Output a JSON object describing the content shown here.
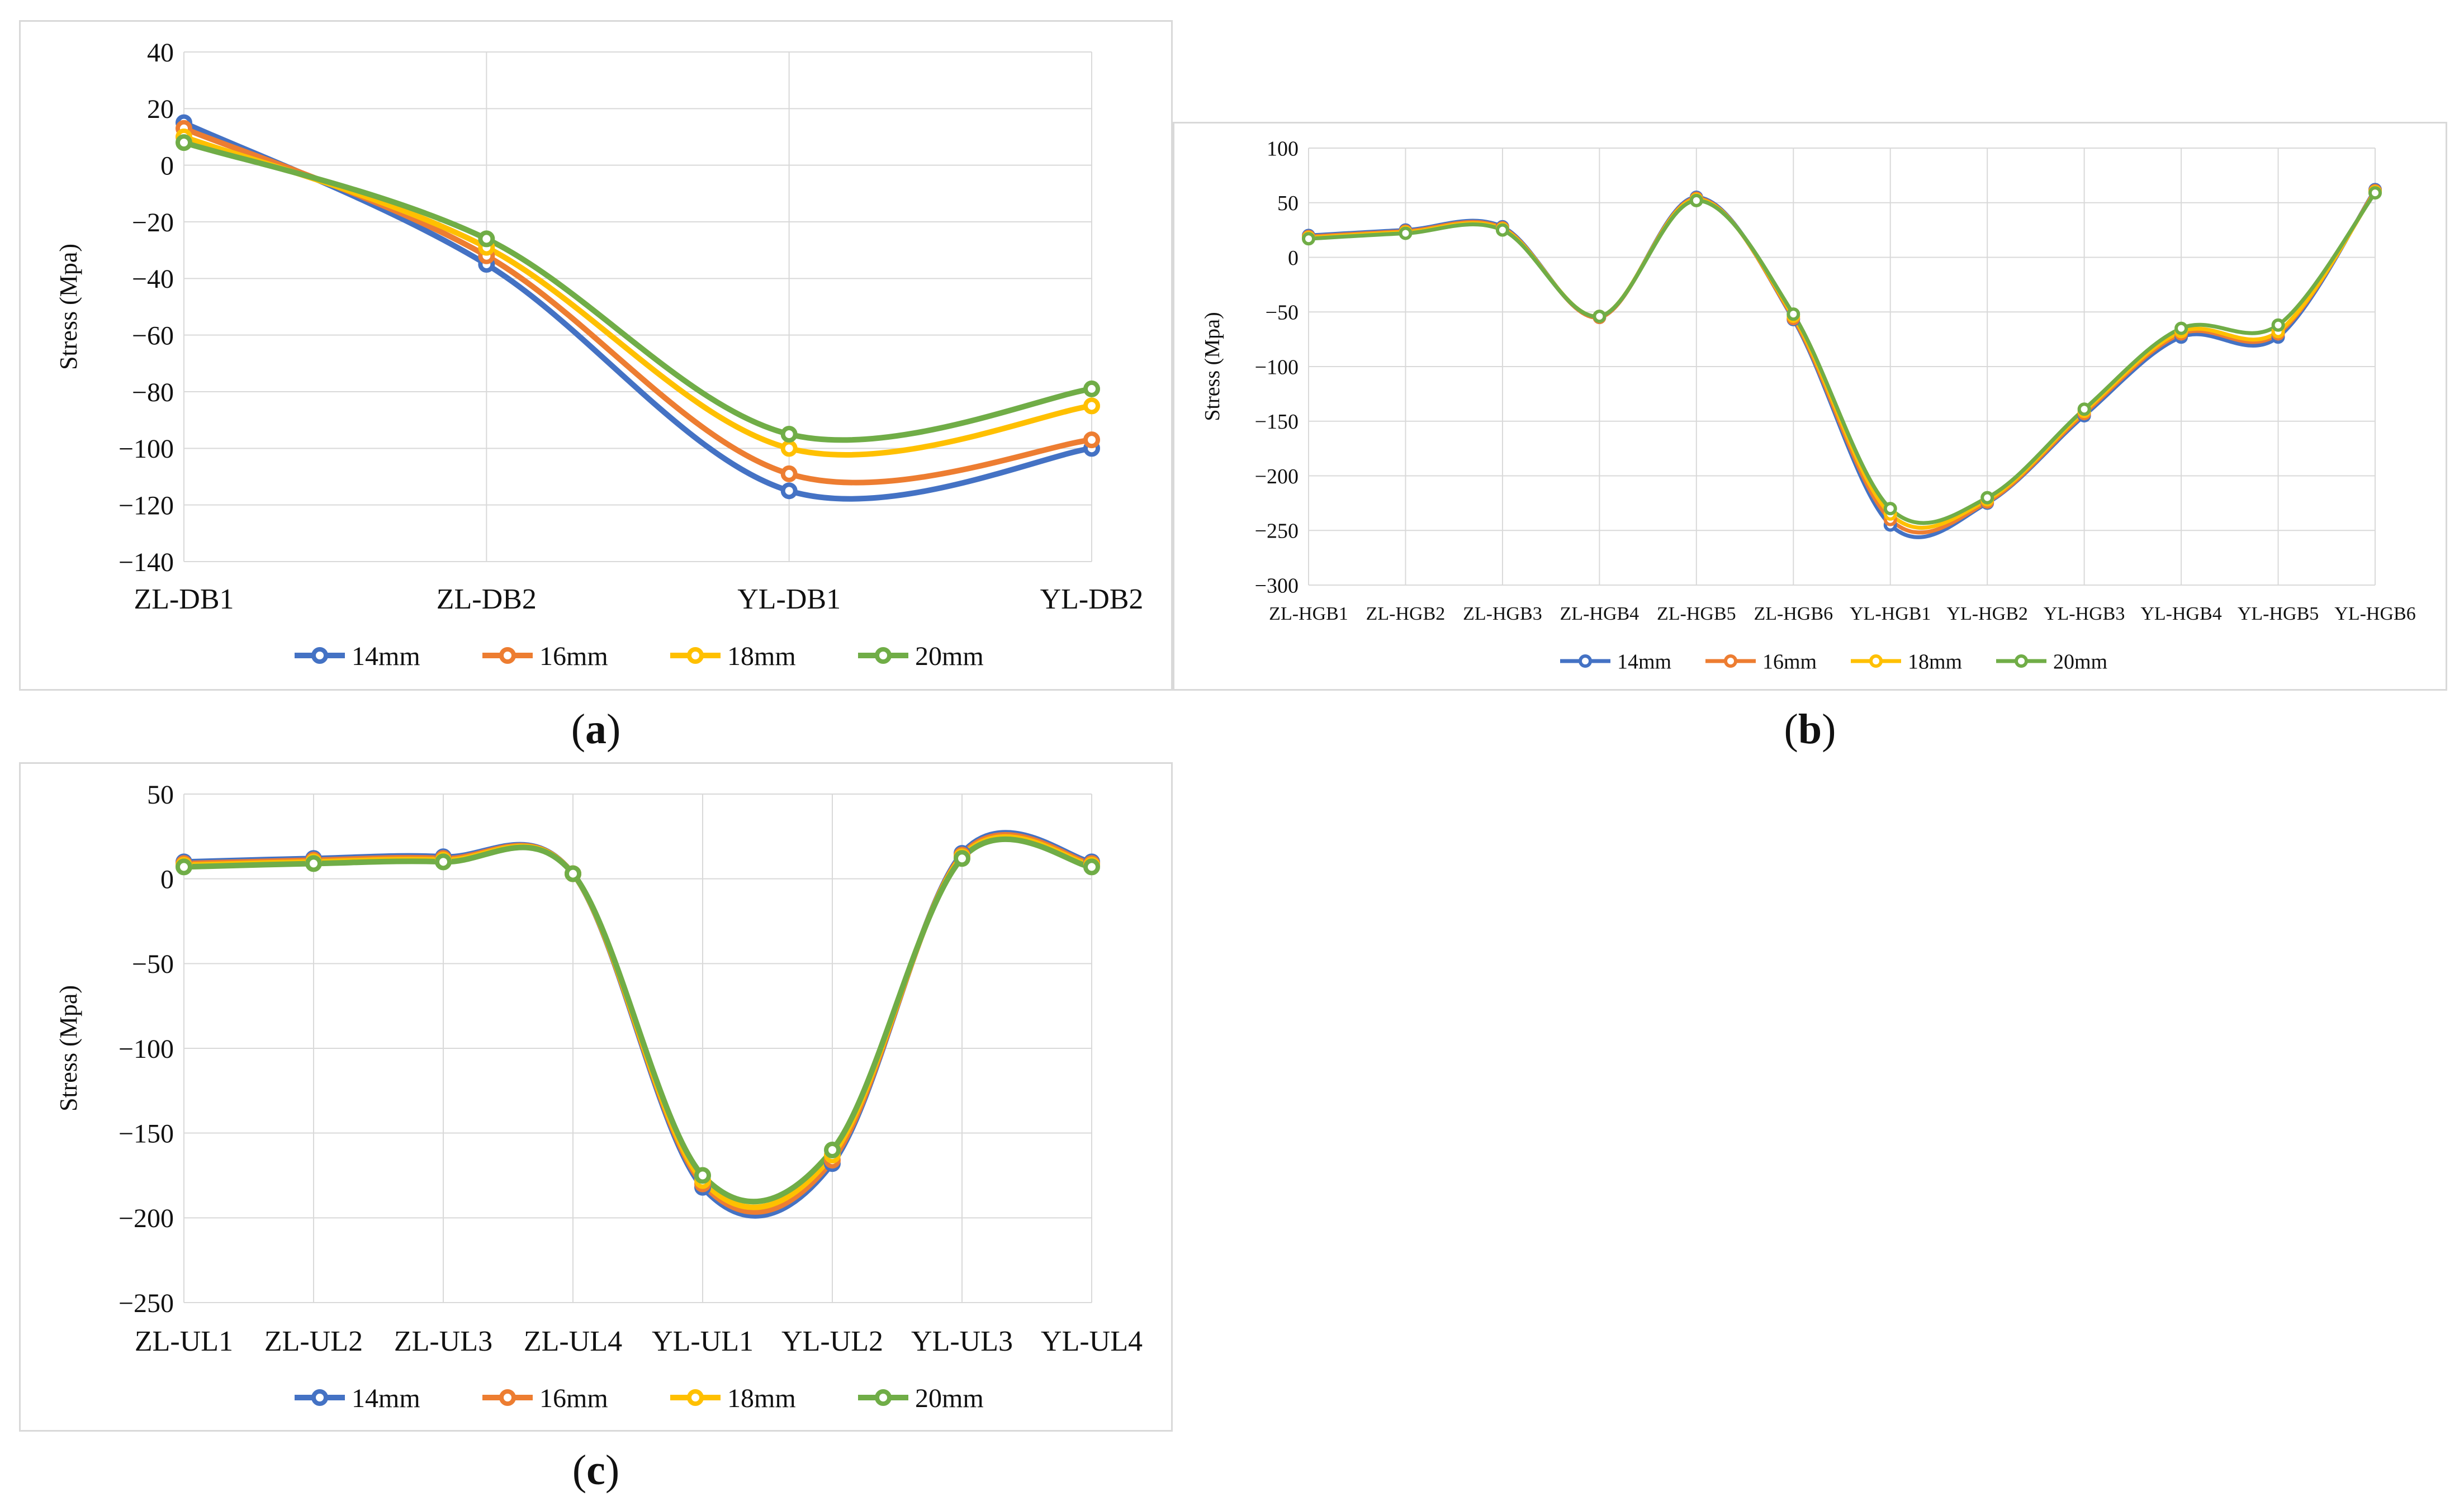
{
  "figure": {
    "captions": [
      "a",
      "b",
      "c"
    ]
  },
  "chart_data": [
    {
      "type": "line",
      "panel": "a",
      "title": "",
      "xlabel": "",
      "ylabel": "Stress (Mpa)",
      "categories": [
        "ZL-DB1",
        "ZL-DB2",
        "YL-DB1",
        "YL-DB2"
      ],
      "ylim": [
        -140,
        40
      ],
      "yticks": [
        40,
        20,
        0,
        -20,
        -40,
        -60,
        -80,
        -100,
        -120,
        -140
      ],
      "grid": true,
      "legend": "bottom",
      "series": [
        {
          "name": "14mm",
          "color": "#4472c4",
          "values": [
            15,
            -35,
            -115,
            -100
          ]
        },
        {
          "name": "16mm",
          "color": "#ed7d31",
          "values": [
            13,
            -32,
            -109,
            -97
          ]
        },
        {
          "name": "18mm",
          "color": "#ffc000",
          "values": [
            10,
            -29,
            -100,
            -85
          ]
        },
        {
          "name": "20mm",
          "color": "#70ad47",
          "values": [
            8,
            -26,
            -95,
            -79
          ]
        }
      ]
    },
    {
      "type": "line",
      "panel": "b",
      "title": "",
      "xlabel": "",
      "ylabel": "Stress (Mpa)",
      "categories": [
        "ZL-HGB1",
        "ZL-HGB2",
        "ZL-HGB3",
        "ZL-HGB4",
        "ZL-HGB5",
        "ZL-HGB6",
        "YL-HGB1",
        "YL-HGB2",
        "YL-HGB3",
        "YL-HGB4",
        "YL-HGB5",
        "YL-HGB6"
      ],
      "ylim": [
        -300,
        100
      ],
      "yticks": [
        100,
        50,
        0,
        -50,
        -100,
        -150,
        -200,
        -250,
        -300
      ],
      "grid": true,
      "legend": "bottom",
      "series": [
        {
          "name": "14mm",
          "color": "#4472c4",
          "values": [
            20,
            25,
            28,
            -55,
            55,
            -57,
            -245,
            -225,
            -145,
            -73,
            -73,
            62
          ]
        },
        {
          "name": "16mm",
          "color": "#ed7d31",
          "values": [
            19,
            24,
            27,
            -55,
            54,
            -56,
            -240,
            -224,
            -143,
            -70,
            -70,
            61
          ]
        },
        {
          "name": "18mm",
          "color": "#ffc000",
          "values": [
            18,
            23,
            26,
            -54,
            53,
            -54,
            -235,
            -222,
            -141,
            -68,
            -68,
            60
          ]
        },
        {
          "name": "20mm",
          "color": "#70ad47",
          "values": [
            17,
            22,
            25,
            -54,
            52,
            -52,
            -230,
            -220,
            -139,
            -65,
            -62,
            59
          ]
        }
      ]
    },
    {
      "type": "line",
      "panel": "c",
      "title": "",
      "xlabel": "",
      "ylabel": "Stress (Mpa)",
      "categories": [
        "ZL-UL1",
        "ZL-UL2",
        "ZL-UL3",
        "ZL-UL4",
        "YL-UL1",
        "YL-UL2",
        "YL-UL3",
        "YL-UL4"
      ],
      "ylim": [
        -250,
        50
      ],
      "yticks": [
        50,
        0,
        -50,
        -100,
        -150,
        -200,
        -250
      ],
      "grid": true,
      "legend": "bottom",
      "series": [
        {
          "name": "14mm",
          "color": "#4472c4",
          "values": [
            10,
            12,
            13,
            3,
            -182,
            -168,
            15,
            10
          ]
        },
        {
          "name": "16mm",
          "color": "#ed7d31",
          "values": [
            9,
            11,
            12,
            3,
            -180,
            -166,
            14,
            9
          ]
        },
        {
          "name": "18mm",
          "color": "#ffc000",
          "values": [
            8,
            10,
            11,
            3,
            -178,
            -163,
            13,
            8
          ]
        },
        {
          "name": "20mm",
          "color": "#70ad47",
          "values": [
            7,
            9,
            10,
            3,
            -175,
            -160,
            12,
            7
          ]
        }
      ]
    }
  ]
}
